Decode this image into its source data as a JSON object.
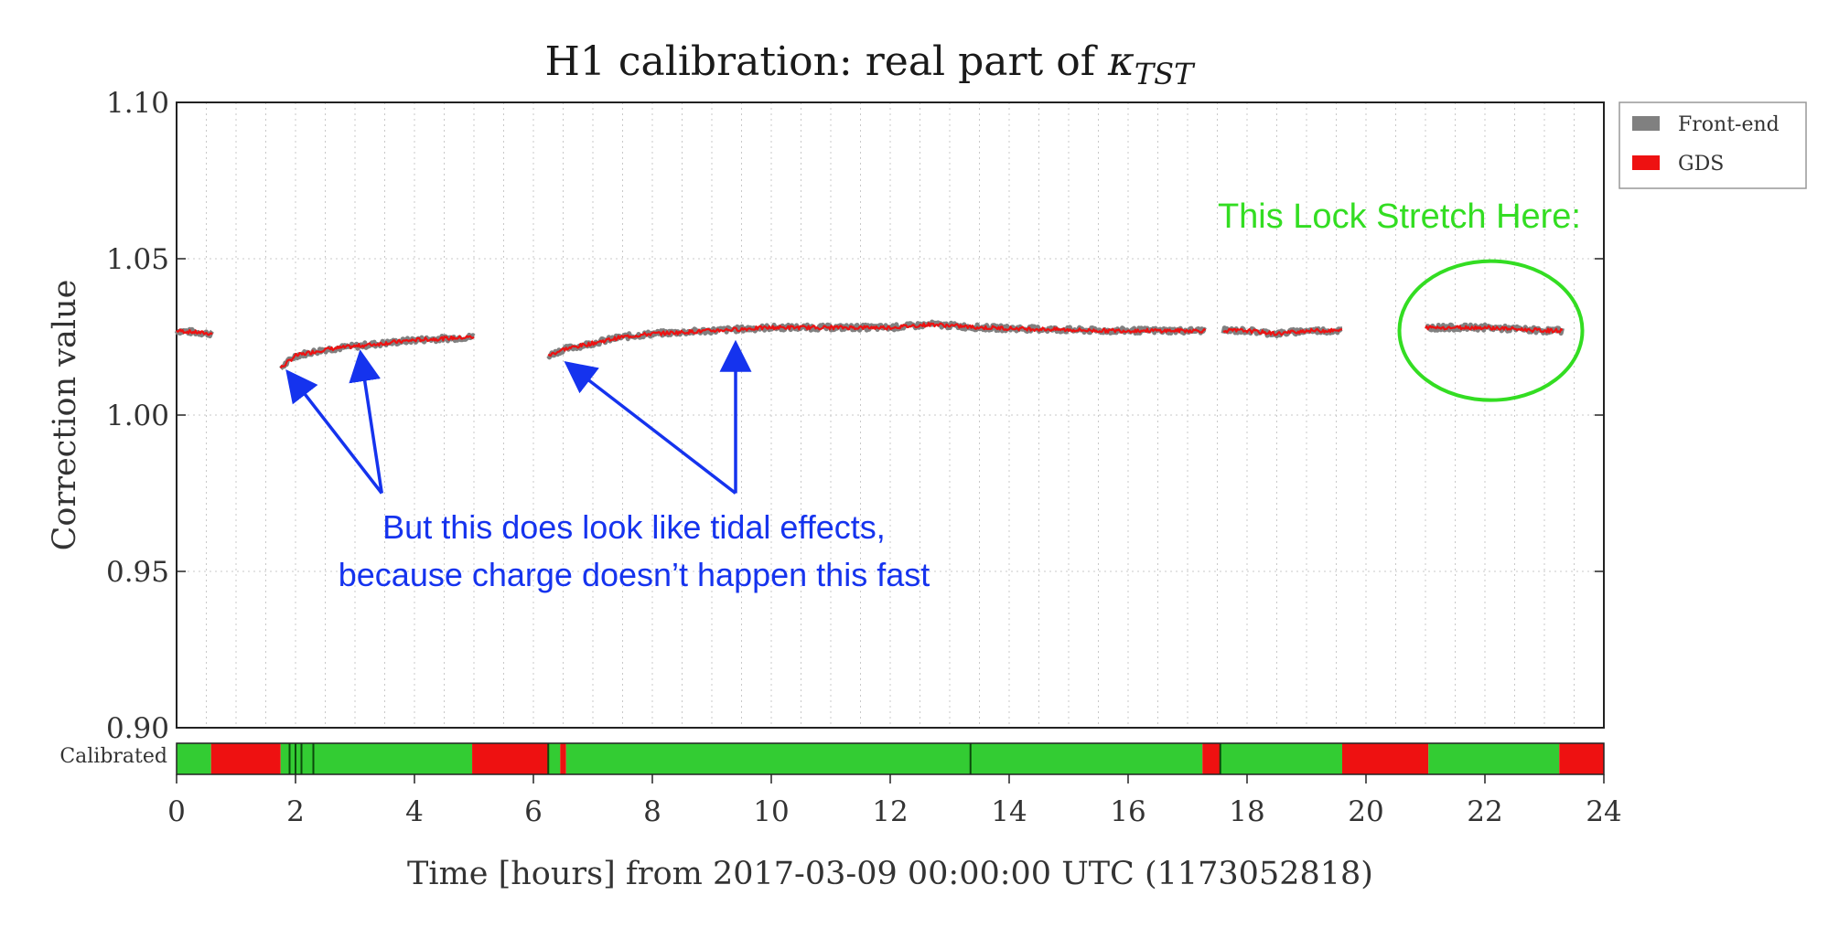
{
  "chart_data": {
    "type": "line",
    "title_prefix": "H1 calibration: real part of ",
    "title_symbol": "κ",
    "title_subscript": "TST",
    "xlabel": "Time [hours] from 2017-03-09 00:00:00 UTC (1173052818)",
    "ylabel": "Correction value",
    "xlim": [
      0,
      24
    ],
    "ylim": [
      0.9,
      1.1
    ],
    "x_ticks": [
      "0",
      "2",
      "4",
      "6",
      "8",
      "10",
      "12",
      "14",
      "16",
      "18",
      "20",
      "22",
      "24"
    ],
    "y_ticks": [
      "1.10",
      "1.05",
      "1.00",
      "0.95",
      "0.90"
    ],
    "grid": true,
    "legend_position": "outside top-right",
    "series": [
      {
        "name": "Front-end",
        "color": "#808080"
      },
      {
        "name": "GDS",
        "color": "#ee1111"
      }
    ],
    "segments": [
      {
        "x": [
          0.0,
          0.6
        ],
        "y": [
          1.027,
          1.026
        ]
      },
      {
        "x": [
          1.75,
          2.0,
          2.5,
          3.0,
          3.5,
          4.0,
          4.5,
          5.0
        ],
        "y": [
          1.015,
          1.019,
          1.021,
          1.022,
          1.023,
          1.024,
          1.0245,
          1.025
        ]
      },
      {
        "x": [
          6.25,
          6.5,
          7.0,
          7.5,
          8.0,
          9.0,
          10.0,
          11.0,
          12.0,
          12.7,
          13.5,
          14.5,
          15.5,
          16.5,
          17.3
        ],
        "y": [
          1.019,
          1.021,
          1.023,
          1.025,
          1.026,
          1.027,
          1.028,
          1.028,
          1.028,
          1.029,
          1.028,
          1.0275,
          1.027,
          1.027,
          1.027
        ]
      },
      {
        "x": [
          17.6,
          18.0,
          18.5,
          19.0,
          19.6
        ],
        "y": [
          1.027,
          1.027,
          1.026,
          1.027,
          1.027
        ]
      },
      {
        "x": [
          21.0,
          21.5,
          22.0,
          22.5,
          23.0,
          23.3
        ],
        "y": [
          1.028,
          1.028,
          1.028,
          1.0275,
          1.027,
          1.027
        ]
      }
    ],
    "state_bar": {
      "label": "Calibrated",
      "segments": [
        {
          "start": 0.0,
          "end": 0.58,
          "color": "#33cc33"
        },
        {
          "start": 0.58,
          "end": 1.75,
          "color": "#ee1111"
        },
        {
          "start": 1.75,
          "end": 4.97,
          "color": "#33cc33"
        },
        {
          "start": 4.97,
          "end": 6.25,
          "color": "#ee1111"
        },
        {
          "start": 6.25,
          "end": 6.45,
          "color": "#33cc33"
        },
        {
          "start": 6.45,
          "end": 6.55,
          "color": "#ee1111"
        },
        {
          "start": 6.55,
          "end": 17.25,
          "color": "#33cc33"
        },
        {
          "start": 17.25,
          "end": 17.55,
          "color": "#ee1111"
        },
        {
          "start": 17.55,
          "end": 19.6,
          "color": "#33cc33"
        },
        {
          "start": 19.6,
          "end": 21.05,
          "color": "#ee1111"
        },
        {
          "start": 21.05,
          "end": 23.25,
          "color": "#33cc33"
        },
        {
          "start": 23.25,
          "end": 24.0,
          "color": "#ee1111"
        }
      ],
      "dark_marks": [
        1.9,
        2.0,
        2.1,
        2.3,
        6.25,
        13.35,
        17.55
      ]
    },
    "annotations": {
      "tidal_line1": "But this does look like tidal effects,",
      "tidal_line2": "because charge doesn’t happen this fast",
      "lock_stretch": "This Lock Stretch Here:",
      "arrow_targets": [
        {
          "x": 1.9,
          "y": 1.013
        },
        {
          "x": 3.1,
          "y": 1.019
        },
        {
          "x": 6.6,
          "y": 1.016
        },
        {
          "x": 9.4,
          "y": 1.022
        }
      ],
      "arrow_origin_left": {
        "x": 3.45,
        "y": 0.975
      },
      "arrow_origin_right": {
        "x": 9.4,
        "y": 0.975
      },
      "circle_center": {
        "x": 22.1,
        "y": 1.027
      }
    }
  }
}
